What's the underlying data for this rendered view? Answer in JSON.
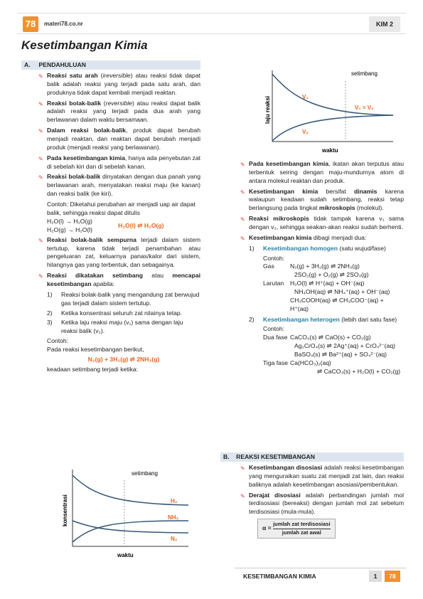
{
  "header": {
    "logo": "78",
    "site": "materi78.co.nr",
    "subject": "KIM 2"
  },
  "title": "Kesetimbangan Kimia",
  "sectionA": {
    "num": "A.",
    "title": "PENDAHULUAN"
  },
  "left": {
    "b1": {
      "bold": "Reaksi satu arah",
      "pre": " (",
      "it": "ireversible",
      "rest": ") atau reaksi tidak dapat balik adalah reaksi yang terjadi pada satu arah, dan produknya tidak dapat kembali menjadi reaktan."
    },
    "b2": {
      "bold": "Reaksi bolak-balik",
      "pre": " (",
      "it": "reversible",
      "rest": ") atau reaksi dapat balik adalah reaksi yang terjadi pada dua arah yang berlawanan dalam waktu bersamaan."
    },
    "b3": {
      "bold": "Dalam reaksi bolak-balik",
      "rest": ", produk dapat berubah menjadi reaktan, dan reaktan dapat berubah menjadi produk (menjadi reaksi yang berlawanan)."
    },
    "b4": {
      "bold": "Pada kesetimbangan kimia",
      "rest": ", hanya ada penyebutan zat di sebelah kiri dan di sebelah kanan."
    },
    "b5": {
      "bold": "Reaksi bolak-balik",
      "rest": " dinyatakan dengan dua panah yang berlawanan arah, menyatakan reaksi maju (ke kanan) dan reaksi balik (ke kiri)."
    },
    "ex1": "Contoh: Diketahui perubahan air menjadi uap air dapat balik, sehingga reaksi dapat ditulis",
    "ex1a": "H₂O(l) → H₂O(g)",
    "ex1b": "H₂O(g) → H₂O(l)",
    "ex1c_l": "H₂O(l)",
    "ex1c_r": "H₂O(g)",
    "b6": {
      "bold": "Reaksi bolak-balik sempurna",
      "rest": " terjadi dalam sistem tertutup, karena tidak terjadi penambahan atau pengeluaran zat, keluarnya panas/kalor dari sistem, hilangnya gas yang terbentuk, dan sebagainya."
    },
    "b7": {
      "bold": "Reaksi dikatakan setimbang",
      "mid": " atau ",
      "bold2": "mencapai kesetimbangan",
      "rest": " apabila:"
    },
    "list": [
      {
        "n": "1)",
        "t": "Reaksi bolak-balik yang mengandung zat berwujud gas terjadi dalam sistem tertutup."
      },
      {
        "n": "2)",
        "t": "Ketika konsentrasi seluruh zat nilainya tetap."
      },
      {
        "n": "3)",
        "t": "Ketika laju reaksi maju (v₁) sama dengan laju reaksi balik (v₂)."
      }
    ],
    "contoh": "Contoh:",
    "ex2": "Pada reaksi kesetimbangan berikut,",
    "ex2eq_l": "N₂(g) + 3H₂(g)",
    "ex2eq_r": "2NH₃(g)",
    "ex2b": "keadaan setimbang terjadi ketika:",
    "chart": {
      "setimbang": "setimbang",
      "ylabel": "konsentrasi",
      "xlabel": "waktu",
      "h2": "H₂",
      "nh3": "NH₃",
      "n2": "N₂"
    }
  },
  "right": {
    "chart": {
      "setimbang": "setimbang",
      "ylabel": "laju reaksi",
      "xlabel": "waktu",
      "v1": "V₁",
      "v2": "V₂",
      "eq": "V₁ = V₂"
    },
    "b1": {
      "bold": "Pada kesetimbangan kimia",
      "rest": ", ikatan akan terputus atau terbentuk seiring dengan maju-mundurnya atom di antara molekul reaktan dan produk."
    },
    "b2": {
      "bold": "Kesetimbangan kimia",
      "pre": " bersifat ",
      "bold2": "dinamis",
      "rest": " karena walaupun keadaan sudah setimbang, reaksi tetap berlangsung pada tingkat ",
      "bold3": "mikroskopis",
      "end": " (molekul)."
    },
    "b3": {
      "bold": "Reaksi mikroskopis",
      "rest": " tidak tampak karena v₁ sama dengan v₂, sehingga seakan-akan reaksi sudah berhenti."
    },
    "b4": {
      "bold": "Kesetimbangan kimia",
      "rest": " dibagi menjadi dua:"
    },
    "n1": {
      "n": "1)",
      "blue": "Kesetimbangan homogen",
      "rest": " (satu wujud/fase)"
    },
    "contoh": "Contoh:",
    "gas": "Gas",
    "g1l": "N₂(g) + 3H₂(g)",
    "g1r": "2NH₃(g)",
    "g2l": "2SO₂(g) + O₂(g)",
    "g2r": "2SO₃(g)",
    "lar": "Larutan",
    "l1l": "H₂O(l)",
    "l1r": "H⁺(aq) + OH⁻(aq)",
    "l2l": "NH₄OH(aq)",
    "l2r": "NH₄⁺(aq) + OH⁻(aq)",
    "l3l": "CH₃COOH(aq)",
    "l3r": "CH₃COO⁻(aq) + H⁺(aq)",
    "n2": {
      "n": "2)",
      "blue": "Kesetimbangan heterogen",
      "rest": " (lebih dari satu fase)"
    },
    "contoh2": "Contoh:",
    "dua": "Dua fase",
    "d1l": "CaCO₃(s)",
    "d1r": "CaO(s) + CO₂(g)",
    "d2l": "Ag₂CrO₄(s)",
    "d2r": "2Ag⁺(aq) + CrO₄²⁻(aq)",
    "d3l": "BaSO₄(s)",
    "d3r": "Ba²⁺(aq) + SO₄²⁻(aq)",
    "tiga": "Tiga fase",
    "t1l": "Ca(HCO₃)₂(aq)",
    "t1r": "CaCO₃(s) + H₂O(l) + CO₂(g)"
  },
  "sectionB": {
    "num": "B.",
    "title": "REAKSI KESETIMBANGAN"
  },
  "rightB": {
    "b1": {
      "bold": "Kesetimbangan disosiasi",
      "rest": " adalah reaksi kesetimbangan yang menguraikan suatu zat menjadi zat lain, dan reaksi baliknya adalah kesetimbangan asosiasi/pembentukan."
    },
    "b2": {
      "bold": "Derajat disosiasi",
      "rest": " adalah perbandingan jumlah mol terdisosiasi (bereaksi) dengan jumlah mol zat sebelum terdisosiasi (mula-mula)."
    },
    "alpha": "α =",
    "num": "jumlah zat terdisosiasi",
    "den": "jumlah zat awal"
  },
  "footer": {
    "title": "KESETIMBANGAN KIMIA",
    "page": "1",
    "logo": "78"
  }
}
